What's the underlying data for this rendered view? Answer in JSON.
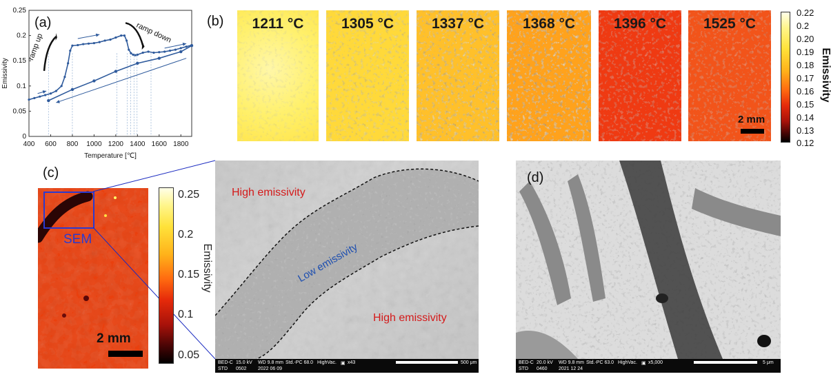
{
  "panels": {
    "a": {
      "label": "(a)",
      "ramp_up": "ramp up",
      "ramp_down": "ramp down",
      "chart_data": {
        "type": "line",
        "xlabel": "Temperature [℃]",
        "ylabel": "Emissivity",
        "xlim": [
          400,
          1900
        ],
        "ylim": [
          0,
          0.25
        ],
        "x_ticks": [
          "400",
          "600",
          "800",
          "1000",
          "1200",
          "1400",
          "1600",
          "1800"
        ],
        "y_ticks": [
          "0",
          "0.05",
          "0.1",
          "0.15",
          "0.2",
          "0.25"
        ],
        "dashed_guides_x": [
          580,
          800,
          1211,
          1305,
          1337,
          1368,
          1396,
          1525
        ],
        "series": [
          {
            "x": [
              400,
              450,
              500,
              550,
              600,
              650,
              700,
              730,
              760,
              780,
              800,
              850,
              900,
              950,
              1000,
              1050,
              1100,
              1150,
              1200,
              1250,
              1280,
              1300,
              1320,
              1340,
              1360,
              1380,
              1400,
              1450,
              1500,
              1550,
              1600,
              1650,
              1700,
              1750,
              1800,
              1850,
              1900
            ],
            "y": [
              0.073,
              0.076,
              0.079,
              0.082,
              0.085,
              0.09,
              0.1,
              0.118,
              0.145,
              0.17,
              0.18,
              0.181,
              0.183,
              0.184,
              0.185,
              0.187,
              0.19,
              0.192,
              0.196,
              0.2,
              0.2,
              0.19,
              0.172,
              0.165,
              0.162,
              0.161,
              0.162,
              0.166,
              0.168,
              0.166,
              0.167,
              0.168,
              0.17,
              0.172,
              0.175,
              0.178,
              0.181
            ]
          },
          {
            "x": [
              580,
              800,
              1000,
              1200,
              1400,
              1600,
              1800,
              1900
            ],
            "y": [
              0.071,
              0.093,
              0.11,
              0.129,
              0.145,
              0.155,
              0.168,
              0.18
            ]
          }
        ]
      }
    },
    "b": {
      "label": "(b)",
      "tiles": [
        {
          "temp": "1211 °C"
        },
        {
          "temp": "1305 °C"
        },
        {
          "temp": "1337 °C"
        },
        {
          "temp": "1368 °C"
        },
        {
          "temp": "1396 °C"
        },
        {
          "temp": "1525 °C"
        }
      ],
      "scale": "2 mm",
      "colorbar_title": "Emissivity",
      "colorbar_ticks": [
        "0.22",
        "0.2",
        "0.20",
        "0.19",
        "0.18",
        "0.17",
        "0.16",
        "0.15",
        "0.14",
        "0.13",
        "0.12"
      ]
    },
    "c": {
      "label": "(c)",
      "sem_tag": "SEM",
      "scale": "2 mm",
      "colorbar_title": "Emissivity",
      "colorbar_ticks": [
        "0.25",
        "0.2",
        "0.15",
        "0.1",
        "0.05"
      ],
      "high_emissivity_1": "High emissivity",
      "low_emissivity": "Low emissivity",
      "high_emissivity_2": "High emissivity",
      "sem_info": {
        "mode": "BED-C",
        "kv": "15.0 kV",
        "wd": "WD 9.8 mm",
        "std": "Std.-PC 68.0",
        "vac": "HighVac.",
        "mag": "x43",
        "id": "STD",
        "num": "0502",
        "date": "2022 06 09",
        "scale": "500 μm"
      }
    },
    "d": {
      "label": "(d)",
      "sem_info": {
        "mode": "BED-C",
        "kv": "20.0 kV",
        "wd": "WD 9.8 mm",
        "std": "Std.-PC 63.0",
        "vac": "HighVac.",
        "mag": "x5,000",
        "id": "STD",
        "num": "0460",
        "date": "2021 12 24",
        "scale": "5 μm"
      }
    }
  }
}
